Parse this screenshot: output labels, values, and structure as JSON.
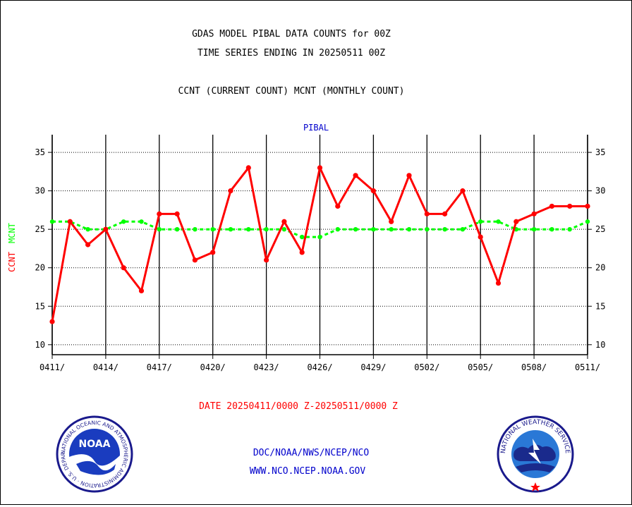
{
  "header": {
    "title_line1": "GDAS MODEL PIBAL DATA COUNTS for 00Z",
    "title_line2": "TIME SERIES ENDING IN 20250511 00Z",
    "subtitle": "CCNT (CURRENT COUNT) MCNT (MONTHLY COUNT)"
  },
  "footer": {
    "date_range": "DATE 20250411/0000 Z-20250511/0000 Z",
    "link1": "DOC/NOAA/NWS/NCEP/NCO",
    "link2": "WWW.NCO.NCEP.NOAA.GOV"
  },
  "logos": {
    "noaa": {
      "text": "NOAA",
      "ring_text": "NATIONAL OCEANIC AND ATMOSPHERIC ADMINISTRATION · U.S. DEPARTMENT OF COMMERCE ·"
    },
    "nws": {
      "ring_text": "NATIONAL WEATHER SERVICE"
    }
  },
  "chart_data": {
    "type": "line",
    "title": "PIBAL",
    "ylabel_parts": [
      {
        "text": "CCNT",
        "color": "#ff0000"
      },
      {
        "text": "MCNT",
        "color": "#00ff00"
      }
    ],
    "x_days": 30,
    "x_ticks": [
      "0411/",
      "0414/",
      "0417/",
      "0420/",
      "0423/",
      "0426/",
      "0429/",
      "0502/",
      "0505/",
      "0508/",
      "0511/"
    ],
    "ylim": [
      8.7,
      37.3
    ],
    "y_ticks": [
      10,
      15,
      20,
      25,
      30,
      35
    ],
    "grid": true,
    "series": [
      {
        "name": "CCNT",
        "color": "#ff0000",
        "style": "solid",
        "values": [
          13,
          26,
          23,
          25,
          20,
          17,
          27,
          27,
          21,
          22,
          30,
          33,
          21,
          26,
          22,
          33,
          28,
          32,
          30,
          26,
          32,
          27,
          27,
          30,
          24,
          18,
          26,
          27,
          28,
          28,
          28
        ]
      },
      {
        "name": "MCNT",
        "color": "#00ff00",
        "style": "dashed",
        "values": [
          26,
          26,
          25,
          25,
          26,
          26,
          25,
          25,
          25,
          25,
          25,
          25,
          25,
          25,
          24,
          24,
          25,
          25,
          25,
          25,
          25,
          25,
          25,
          25,
          26,
          26,
          25,
          25,
          25,
          25,
          26
        ]
      }
    ]
  }
}
